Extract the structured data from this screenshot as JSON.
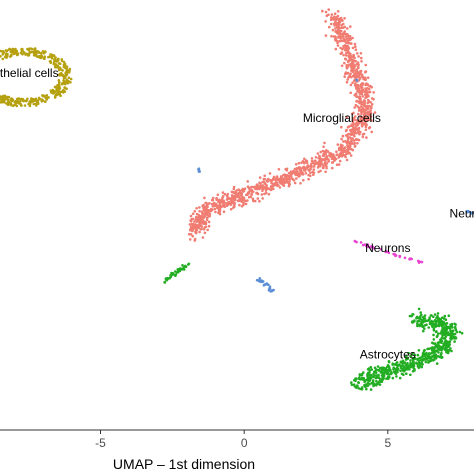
{
  "chart_data": {
    "type": "scatter",
    "xlabel": "UMAP – 1st dimension",
    "ylabel": "",
    "title": "",
    "xlim": [
      -8.5,
      8.0
    ],
    "ylim": [
      -8.0,
      8.2
    ],
    "x_ticks": [
      -5,
      0,
      5
    ],
    "x_tick_labels": [
      "-5",
      "0",
      "5"
    ],
    "grid": false,
    "legend": "none",
    "clusters": [
      {
        "name": "Endothelial cells",
        "label": "othelial cells",
        "label_pos": [
          -7.6,
          5.3
        ],
        "color": "#b5a00f",
        "shape": "ellipse",
        "center": [
          -7.7,
          5.3
        ],
        "radius": [
          1.6,
          1.05
        ],
        "count": 520,
        "spread": 0.0
      },
      {
        "name": "Microglial cells",
        "label": "Microglial cells",
        "label_pos": [
          3.4,
          3.6
        ],
        "color": "#f07c72",
        "shape": "path",
        "path": [
          [
            3.1,
            7.6
          ],
          [
            3.4,
            6.9
          ],
          [
            3.7,
            6.0
          ],
          [
            4.1,
            4.8
          ],
          [
            4.2,
            3.9
          ],
          [
            3.6,
            2.6
          ],
          [
            1.7,
            1.6
          ],
          [
            -0.4,
            0.7
          ],
          [
            -1.3,
            0.3
          ],
          [
            -1.7,
            -0.3
          ],
          [
            -1.7,
            -0.6
          ]
        ],
        "count": 1300,
        "spread": 0.32
      },
      {
        "name": "Astrocytes",
        "label": "Astrocytes",
        "label_pos": [
          5.0,
          -5.3
        ],
        "color": "#22ad22",
        "shape": "path",
        "path": [
          [
            6.0,
            -3.9
          ],
          [
            6.6,
            -3.9
          ],
          [
            7.2,
            -4.3
          ],
          [
            6.8,
            -5.0
          ],
          [
            5.8,
            -5.5
          ],
          [
            4.6,
            -6.0
          ],
          [
            3.9,
            -6.2
          ]
        ],
        "count": 650,
        "spread": 0.33
      },
      {
        "name": "Neurons",
        "label": "Neurons",
        "label_pos": [
          5.0,
          -1.3
        ],
        "color": "#e646d2",
        "shape": "path",
        "path": [
          [
            3.8,
            -0.9
          ],
          [
            6.2,
            -1.7
          ]
        ],
        "count": 40,
        "spread": 0.05
      },
      {
        "name": "Neuroblasts",
        "label": "Neuroblas",
        "label_pos": [
          8.1,
          0.0
        ],
        "color": "#5b8ed6",
        "shape": "path",
        "path": [
          [
            7.7,
            0.25
          ],
          [
            8.3,
            0.1
          ]
        ],
        "count": 16,
        "spread": 0.04
      },
      {
        "name": "cluster-green-small",
        "label": "",
        "color": "#22ad22",
        "shape": "path",
        "path": [
          [
            -1.9,
            -1.7
          ],
          [
            -2.8,
            -2.4
          ]
        ],
        "count": 40,
        "spread": 0.07
      },
      {
        "name": "cluster-blue-small",
        "label": "",
        "color": "#5b8ed6",
        "shape": "path",
        "path": [
          [
            0.5,
            -2.3
          ],
          [
            1.0,
            -2.8
          ]
        ],
        "count": 26,
        "spread": 0.1
      },
      {
        "name": "cluster-blue-tiny",
        "label": "",
        "color": "#5b8ed6",
        "shape": "path",
        "path": [
          [
            -1.6,
            1.85
          ],
          [
            -1.55,
            1.7
          ]
        ],
        "count": 6,
        "spread": 0.03
      },
      {
        "name": "cluster-blue-dot",
        "label": "",
        "color": "#5b8ed6",
        "shape": "path",
        "path": [
          [
            3.9,
            5.2
          ],
          [
            3.95,
            5.15
          ]
        ],
        "count": 2,
        "spread": 0.02
      }
    ]
  }
}
